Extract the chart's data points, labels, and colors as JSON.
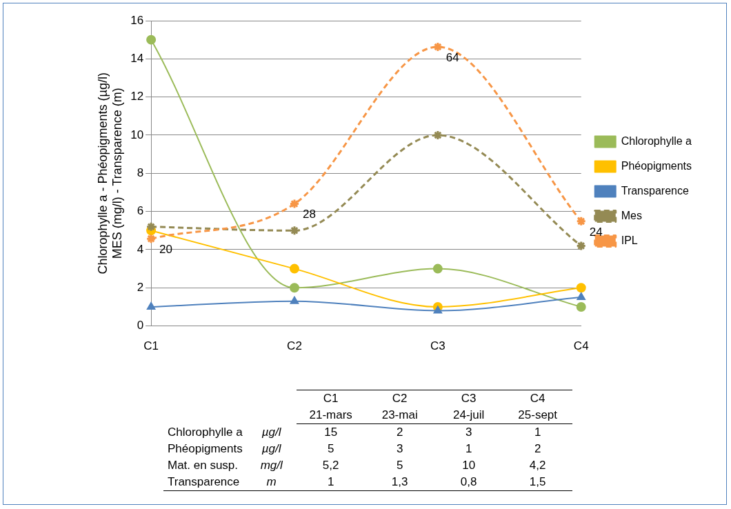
{
  "chart_data": {
    "type": "line",
    "ylabel": "Chlorophylle a - Phéopigments (µg/l)\nMES (mg/l) - Transparence (m)",
    "categories": [
      "C1",
      "C2",
      "C3",
      "C4"
    ],
    "ylim": [
      0,
      16
    ],
    "yticks": [
      0,
      2,
      4,
      6,
      8,
      10,
      12,
      14,
      16
    ],
    "y2lim": [
      0,
      70
    ],
    "grid": "y",
    "legend": "right",
    "series": [
      {
        "name": "Chlorophylle a",
        "color": "#9bbb59",
        "marker": "circle",
        "line_style": "solid",
        "values": [
          15,
          2,
          3,
          1
        ]
      },
      {
        "name": "Phéopigments",
        "color": "#ffc000",
        "marker": "circle",
        "line_style": "solid",
        "values": [
          5,
          3,
          1,
          2
        ]
      },
      {
        "name": "Transparence",
        "color": "#4f81bd",
        "marker": "triangle",
        "line_style": "solid",
        "values": [
          1,
          1.3,
          0.8,
          1.5
        ]
      },
      {
        "name": "Mes",
        "color": "#948a54",
        "marker": "cross",
        "line_style": "dashed",
        "values": [
          5.2,
          5,
          10,
          4.2
        ]
      },
      {
        "name": "IPL",
        "color": "#f79646",
        "marker": "cross",
        "line_style": "dashed",
        "axis": "y2",
        "values": [
          20,
          28,
          64,
          24
        ],
        "value_labels": [
          "20",
          "28",
          "64",
          "24"
        ]
      }
    ],
    "annotations": [
      "C1",
      "C2",
      "C3",
      "C4",
      "21-mars",
      "23-mai",
      "24-juil",
      "25-sept",
      "Chlorophylle a",
      "µg/l",
      "15",
      "2",
      "3",
      "1",
      "Phéopigments",
      "µg/l",
      "5",
      "3",
      "1",
      "2",
      "Mat. en susp.",
      "mg/l",
      "5,2",
      "5",
      "10",
      "4,2",
      "Transparence",
      "m",
      "1",
      "1,3",
      "0,8",
      "1,5"
    ]
  }
}
